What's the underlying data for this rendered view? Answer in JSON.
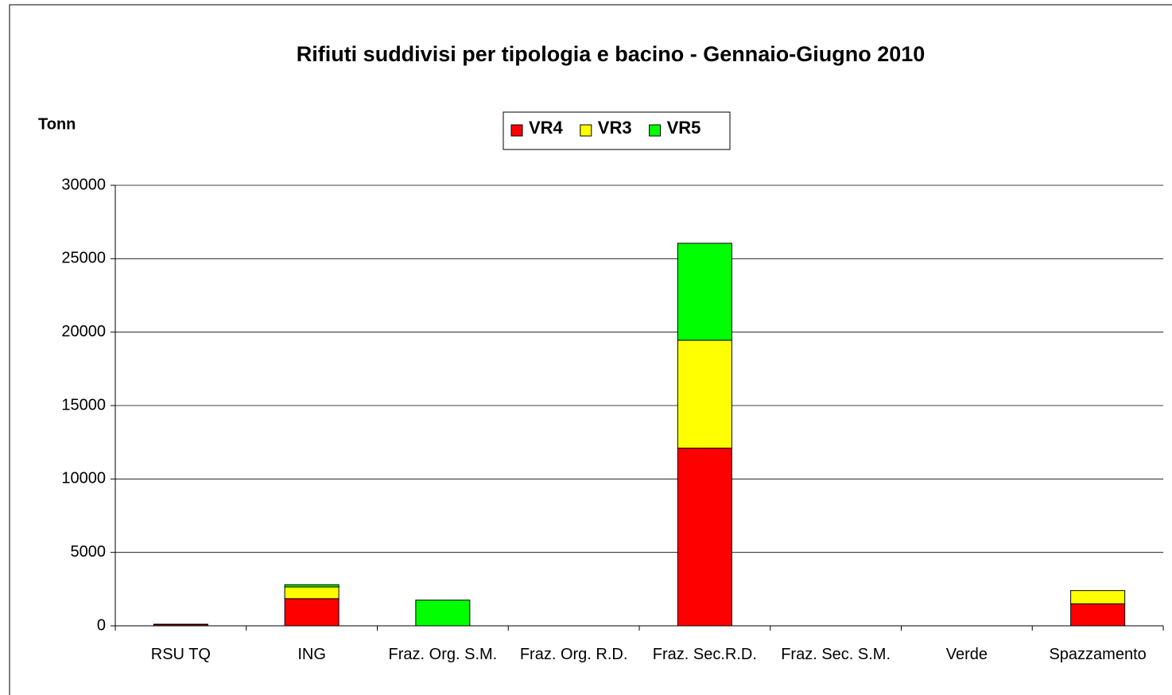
{
  "chart_data": {
    "type": "stacked_bar",
    "title": "Rifiuti suddivisi per tipologia e bacino - Gennaio-Giugno 2010",
    "y_label": "Tonn",
    "categories": [
      "RSU TQ",
      "ING",
      "Fraz. Org. S.M.",
      "Fraz. Org. R.D.",
      "Fraz. Sec.R.D.",
      "Fraz. Sec. S.M.",
      "Verde",
      "Spazzamento"
    ],
    "series": [
      {
        "name": "VR4",
        "color": "#ff0000",
        "values": [
          80,
          1850,
          0,
          0,
          12100,
          0,
          0,
          1500
        ]
      },
      {
        "name": "VR3",
        "color": "#ffff00",
        "values": [
          30,
          800,
          0,
          0,
          7350,
          0,
          0,
          900
        ]
      },
      {
        "name": "VR5",
        "color": "#00ff00",
        "values": [
          0,
          150,
          1750,
          0,
          6600,
          0,
          0,
          0
        ]
      }
    ],
    "ylim": [
      0,
      30000
    ],
    "yticks": [
      0,
      5000,
      10000,
      15000,
      20000,
      25000,
      30000
    ],
    "grid": true,
    "legend": "top"
  }
}
